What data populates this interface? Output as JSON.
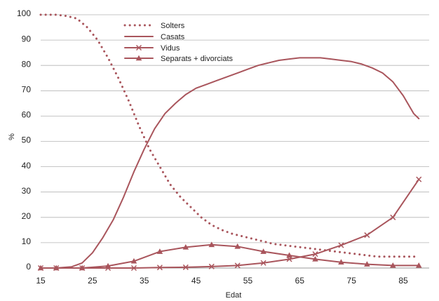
{
  "chart_data": {
    "type": "line",
    "xlabel": "Edat",
    "ylabel": "%",
    "xlim": [
      15,
      90
    ],
    "ylim": [
      0,
      100
    ],
    "xticks": [
      15,
      25,
      35,
      45,
      55,
      65,
      75,
      85
    ],
    "yticks": [
      0,
      10,
      20,
      30,
      40,
      50,
      60,
      70,
      80,
      90,
      100
    ],
    "grid": "horizontal",
    "legend_position": "top-center",
    "color": "#a9555c",
    "series": [
      {
        "name": "Solters",
        "style": "dotted",
        "marker": "none",
        "x": [
          15,
          18,
          20,
          22,
          24,
          26,
          28,
          30,
          32,
          34,
          36,
          38,
          40,
          42,
          44,
          46,
          48,
          50,
          52,
          54,
          56,
          58,
          60,
          62,
          64,
          66,
          68,
          70,
          72,
          74,
          76,
          78,
          80,
          82,
          84,
          86,
          88
        ],
        "y": [
          100,
          100,
          99.5,
          98.5,
          95,
          90,
          83,
          75,
          66,
          56,
          47,
          40,
          33,
          28,
          24,
          20,
          17,
          15,
          13.5,
          12.5,
          11.5,
          10.5,
          9.5,
          9,
          8.5,
          8,
          7.5,
          7,
          6.5,
          6,
          5.5,
          5,
          4.5,
          4.5,
          4.5,
          4.5,
          4.5
        ]
      },
      {
        "name": "Casats",
        "style": "solid",
        "marker": "none",
        "x": [
          15,
          18,
          21,
          23,
          25,
          27,
          29,
          31,
          33,
          35,
          37,
          39,
          41,
          43,
          45,
          47,
          49,
          51,
          53,
          55,
          57,
          59,
          61,
          63,
          65,
          67,
          69,
          71,
          73,
          75,
          77,
          79,
          81,
          83,
          85,
          87,
          88
        ],
        "y": [
          0,
          0,
          0.5,
          2,
          6,
          12,
          19,
          28,
          38,
          47,
          55,
          61,
          65,
          68.5,
          71,
          72.5,
          74,
          75.5,
          77,
          78.5,
          80,
          81,
          82,
          82.5,
          83,
          83,
          83,
          82.5,
          82,
          81.5,
          80.5,
          79,
          77,
          73.5,
          68,
          61,
          59
        ]
      },
      {
        "name": "Vidus",
        "style": "solid",
        "marker": "x",
        "x": [
          15,
          18,
          23,
          28,
          33,
          38,
          43,
          48,
          53,
          58,
          63,
          68,
          73,
          78,
          83,
          88
        ],
        "y": [
          0,
          0,
          0,
          0,
          0,
          0.2,
          0.3,
          0.6,
          1,
          2,
          3.5,
          5.5,
          9,
          13,
          20,
          35
        ]
      },
      {
        "name": "Separats + divorciats",
        "style": "solid",
        "marker": "triangle",
        "x": [
          15,
          18,
          23,
          28,
          33,
          38,
          43,
          48,
          53,
          58,
          63,
          68,
          73,
          78,
          83,
          88
        ],
        "y": [
          0,
          0,
          0,
          0.8,
          2.7,
          6.5,
          8.2,
          9.2,
          8.5,
          6.5,
          5,
          3.5,
          2.3,
          1.5,
          1,
          1
        ]
      }
    ]
  }
}
